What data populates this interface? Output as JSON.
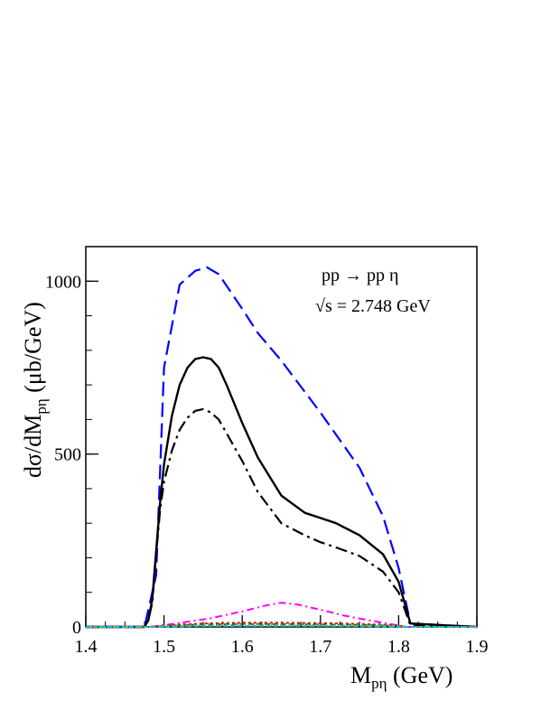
{
  "chart_data": {
    "type": "line",
    "title": "",
    "annotations": [
      {
        "name": "reaction",
        "text": "pp → pp η"
      },
      {
        "name": "energy-root",
        "text": "√s"
      },
      {
        "name": "energy-value",
        "text": " = 2.748 GeV"
      }
    ],
    "xlabel": {
      "main": "M",
      "sub": "pη",
      "suffix": " (GeV)"
    },
    "ylabel": {
      "main": "dσ/dM",
      "sub": "pη",
      "suffix": " (μb/GeV)"
    },
    "xlim": [
      1.4,
      1.9
    ],
    "ylim": [
      0,
      1100
    ],
    "xticks": [
      1.4,
      1.5,
      1.6,
      1.7,
      1.8,
      1.9
    ],
    "xtick_labels": [
      "1.4",
      "1.5",
      "1.6",
      "1.7",
      "1.8",
      "1.9"
    ],
    "yticks": [
      0,
      500,
      1000
    ],
    "ytick_labels": [
      "0",
      "500",
      "1000"
    ],
    "grid": false,
    "series": [
      {
        "color": "#0000ff",
        "dash": "16,7",
        "width": 2.2,
        "x": [
          1.4,
          1.475,
          1.49,
          1.5,
          1.52,
          1.54,
          1.555,
          1.57,
          1.6,
          1.62,
          1.65,
          1.7,
          1.75,
          1.78,
          1.8,
          1.815,
          1.9
        ],
        "y": [
          0,
          0,
          150,
          750,
          990,
          1030,
          1040,
          1020,
          920,
          850,
          770,
          620,
          460,
          320,
          170,
          10,
          0
        ]
      },
      {
        "color": "#000000",
        "dash": "",
        "width": 2.4,
        "x": [
          1.4,
          1.475,
          1.48,
          1.485,
          1.49,
          1.495,
          1.5,
          1.51,
          1.52,
          1.53,
          1.54,
          1.55,
          1.56,
          1.57,
          1.58,
          1.6,
          1.62,
          1.65,
          1.68,
          1.7,
          1.72,
          1.75,
          1.78,
          1.8,
          1.815,
          1.9
        ],
        "y": [
          0,
          0,
          20,
          80,
          220,
          360,
          470,
          610,
          700,
          750,
          775,
          780,
          775,
          750,
          700,
          590,
          490,
          380,
          330,
          315,
          300,
          265,
          210,
          130,
          10,
          0
        ]
      },
      {
        "color": "#000000",
        "dash": "13,5,3,5",
        "width": 2.2,
        "x": [
          1.4,
          1.475,
          1.48,
          1.485,
          1.49,
          1.495,
          1.5,
          1.51,
          1.52,
          1.53,
          1.54,
          1.55,
          1.56,
          1.57,
          1.58,
          1.6,
          1.62,
          1.65,
          1.68,
          1.7,
          1.72,
          1.75,
          1.78,
          1.8,
          1.815,
          1.9
        ],
        "y": [
          0,
          0,
          20,
          70,
          210,
          340,
          420,
          510,
          570,
          605,
          625,
          630,
          620,
          600,
          560,
          480,
          390,
          300,
          265,
          245,
          230,
          205,
          160,
          100,
          5,
          0
        ]
      },
      {
        "color": "#ff00ff",
        "dash": "8,4,2,4",
        "width": 2,
        "x": [
          1.4,
          1.48,
          1.5,
          1.53,
          1.56,
          1.6,
          1.63,
          1.65,
          1.67,
          1.7,
          1.73,
          1.76,
          1.79,
          1.81,
          1.9
        ],
        "y": [
          0,
          0,
          5,
          15,
          25,
          45,
          62,
          70,
          65,
          50,
          33,
          20,
          8,
          0,
          0
        ]
      },
      {
        "color": "#ff0000",
        "dash": "3,3",
        "width": 2,
        "x": [
          1.4,
          1.48,
          1.5,
          1.55,
          1.6,
          1.65,
          1.7,
          1.75,
          1.8,
          1.81,
          1.9
        ],
        "y": [
          0,
          0,
          4,
          10,
          12,
          12,
          11,
          9,
          4,
          0,
          0
        ]
      },
      {
        "color": "#008000",
        "dash": "6,3",
        "width": 2,
        "x": [
          1.4,
          1.48,
          1.5,
          1.55,
          1.6,
          1.65,
          1.7,
          1.75,
          1.8,
          1.81,
          1.9
        ],
        "y": [
          0,
          0,
          3,
          7,
          8,
          8,
          7,
          6,
          3,
          0,
          0
        ]
      },
      {
        "color": "#ff8c00",
        "dash": "2,3",
        "width": 2,
        "x": [
          1.4,
          1.48,
          1.5,
          1.55,
          1.6,
          1.65,
          1.7,
          1.75,
          1.8,
          1.81,
          1.9
        ],
        "y": [
          0,
          0,
          2,
          5,
          6,
          6,
          5,
          4,
          2,
          0,
          0
        ]
      },
      {
        "color": "#00bfff",
        "dash": "5,3",
        "width": 2,
        "x": [
          1.4,
          1.48,
          1.5,
          1.55,
          1.6,
          1.65,
          1.7,
          1.75,
          1.8,
          1.81,
          1.9
        ],
        "y": [
          0,
          0,
          1,
          3,
          3,
          3,
          3,
          2,
          1,
          0,
          0
        ]
      }
    ]
  }
}
